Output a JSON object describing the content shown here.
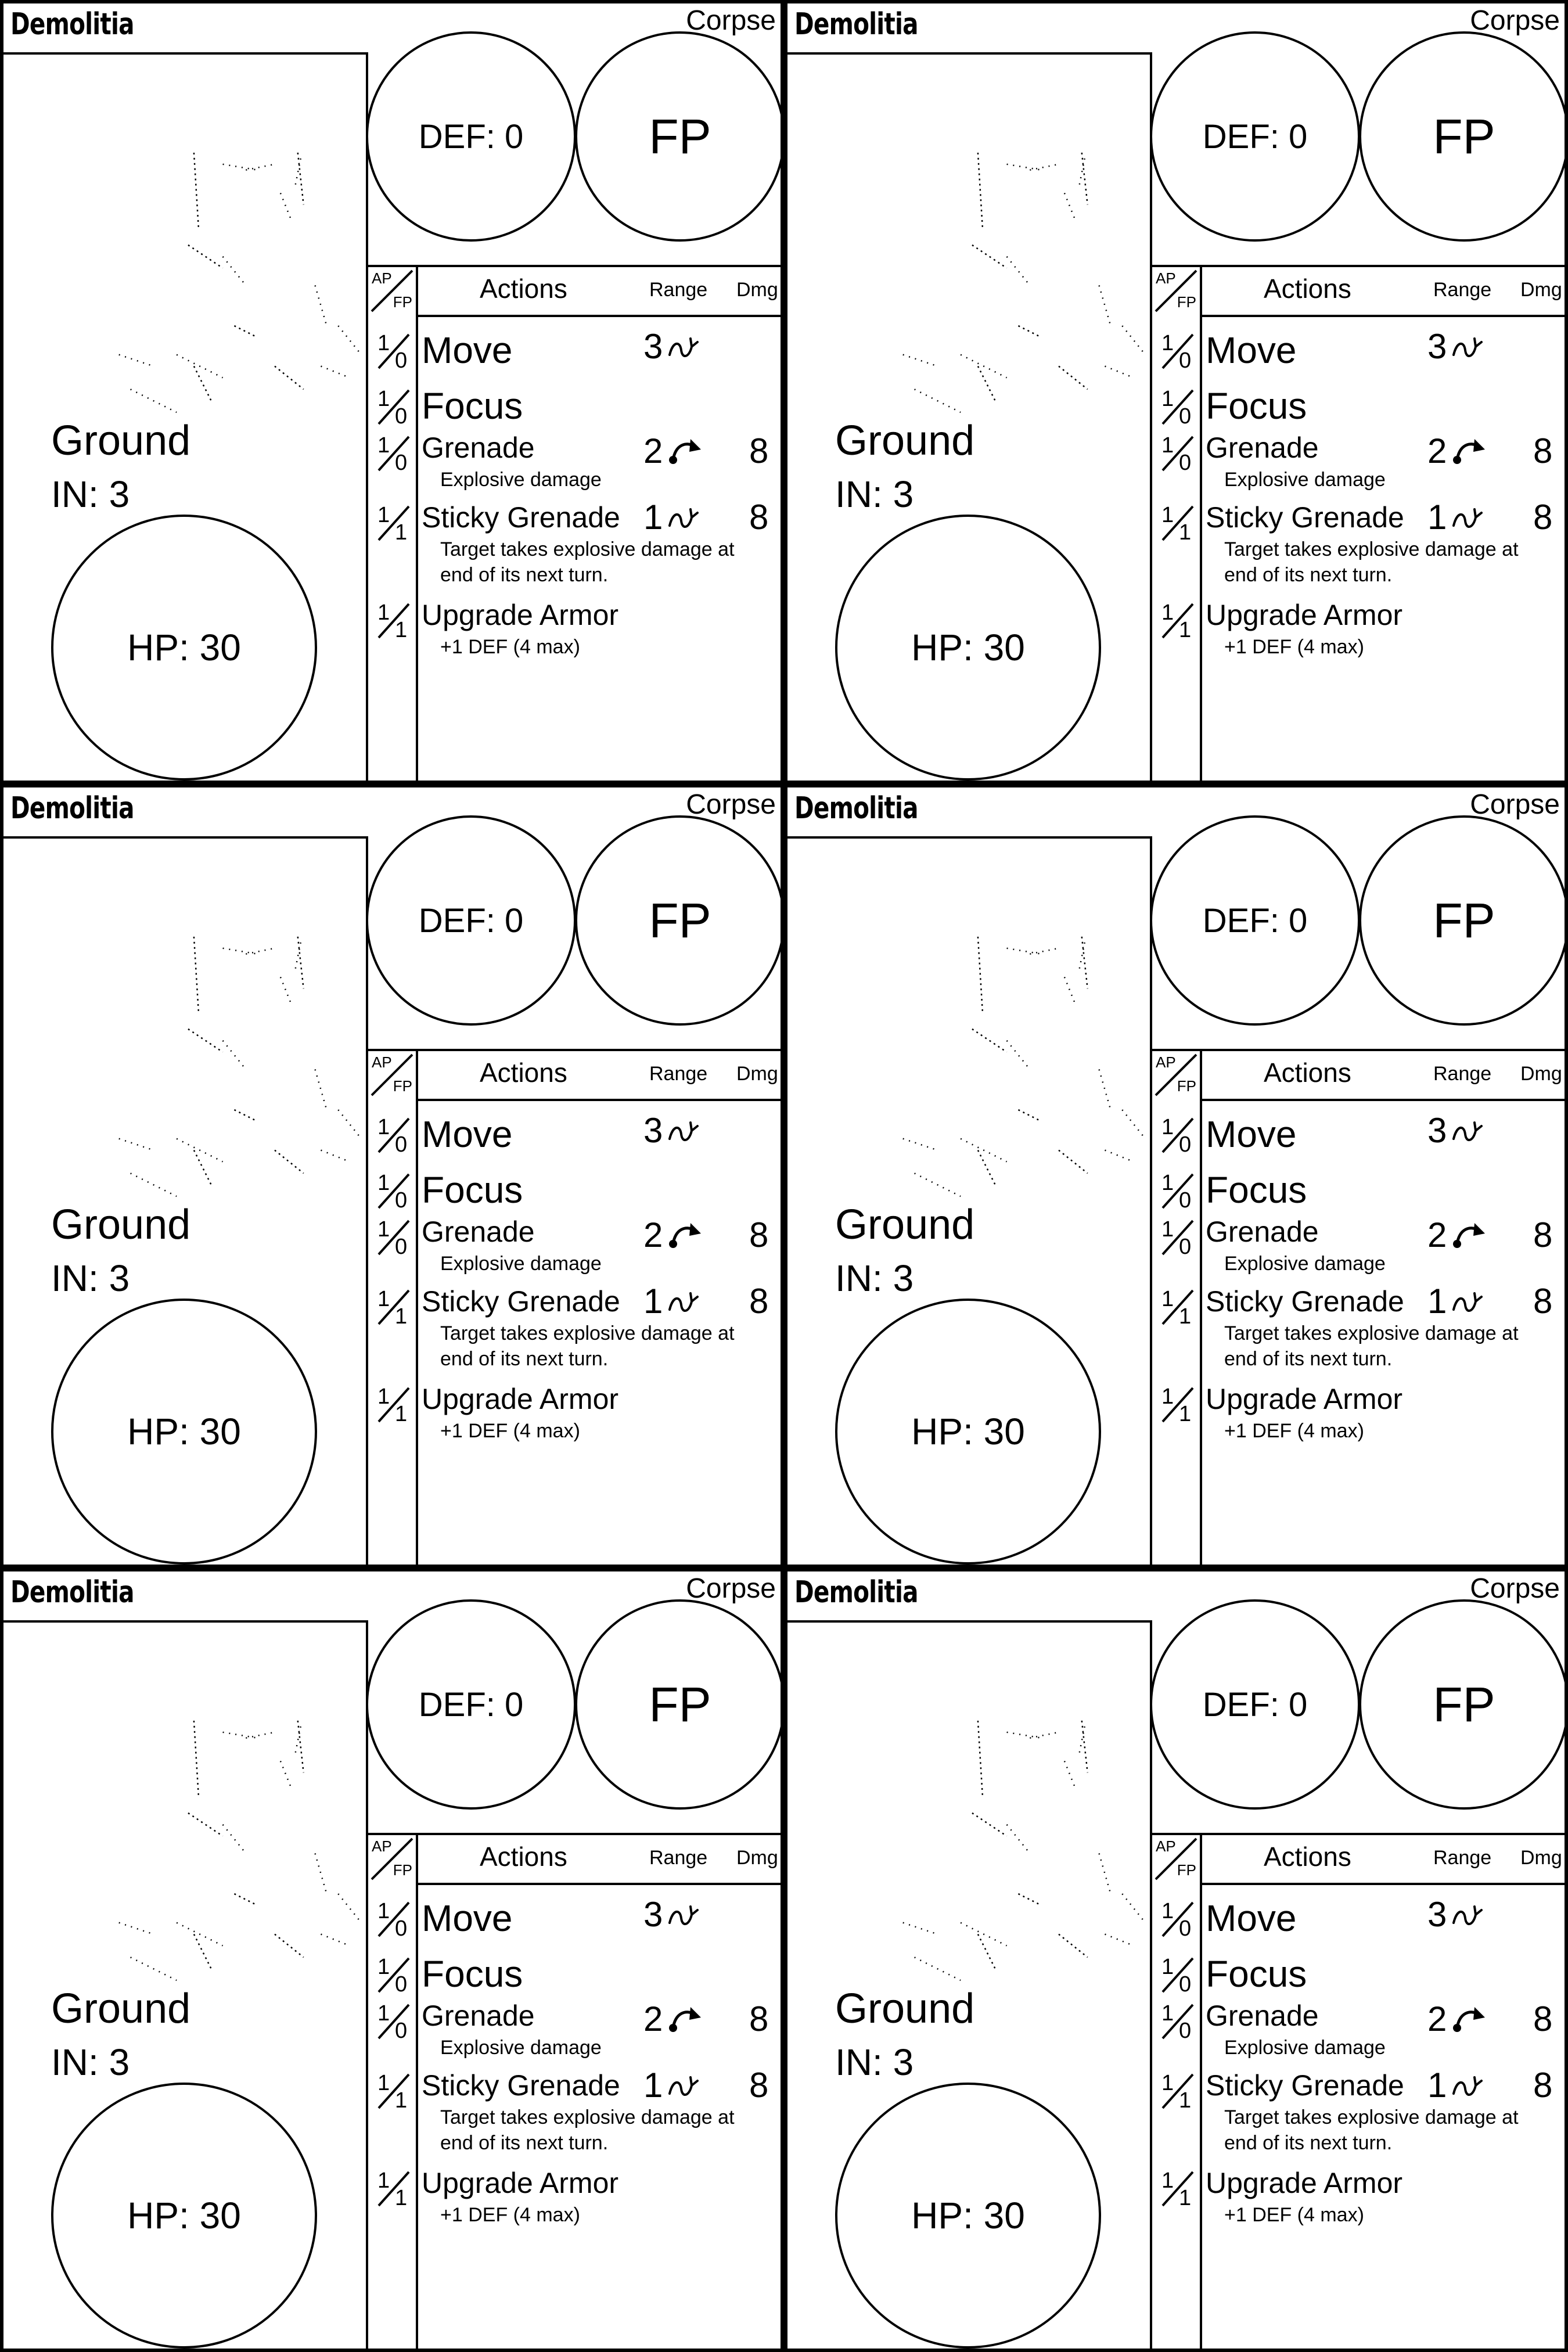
{
  "cards": [
    {
      "name": "Demolitia",
      "faction": "Corpse",
      "def_label": "DEF: 0",
      "fp_label": "FP",
      "terrain": "Ground",
      "initiative": "IN: 3",
      "hp_label": "HP: 30",
      "headers": {
        "ap": "AP",
        "fp": "FP",
        "actions": "Actions",
        "range": "Range",
        "dmg": "Dmg"
      },
      "actions": [
        {
          "ap": "1",
          "fp": "0",
          "name": "Move",
          "range": "3",
          "range_icon": "curved-path-icon",
          "dmg": "",
          "desc": []
        },
        {
          "ap": "1",
          "fp": "0",
          "name": "Focus",
          "range": "",
          "range_icon": "",
          "dmg": "",
          "desc": []
        },
        {
          "ap": "1",
          "fp": "0",
          "name": "Grenade",
          "range": "2",
          "range_icon": "lob-arc-icon",
          "dmg": "8",
          "desc": [
            "Explosive damage"
          ]
        },
        {
          "ap": "1",
          "fp": "1",
          "name": "Sticky Grenade",
          "range": "1",
          "range_icon": "curved-path-icon",
          "dmg": "8",
          "desc": [
            "Target takes explosive  damage at",
            "end of its next turn."
          ]
        },
        {
          "ap": "1",
          "fp": "1",
          "name": "Upgrade Armor",
          "range": "",
          "range_icon": "",
          "dmg": "",
          "desc": [
            "+1 DEF (4 max)"
          ]
        }
      ]
    },
    {
      "name": "Demolitia",
      "faction": "Corpse",
      "def_label": "DEF: 0",
      "fp_label": "FP",
      "terrain": "Ground",
      "initiative": "IN: 3",
      "hp_label": "HP: 30",
      "headers": {
        "ap": "AP",
        "fp": "FP",
        "actions": "Actions",
        "range": "Range",
        "dmg": "Dmg"
      },
      "actions": [
        {
          "ap": "1",
          "fp": "0",
          "name": "Move",
          "range": "3",
          "range_icon": "curved-path-icon",
          "dmg": "",
          "desc": []
        },
        {
          "ap": "1",
          "fp": "0",
          "name": "Focus",
          "range": "",
          "range_icon": "",
          "dmg": "",
          "desc": []
        },
        {
          "ap": "1",
          "fp": "0",
          "name": "Grenade",
          "range": "2",
          "range_icon": "lob-arc-icon",
          "dmg": "8",
          "desc": [
            "Explosive damage"
          ]
        },
        {
          "ap": "1",
          "fp": "1",
          "name": "Sticky Grenade",
          "range": "1",
          "range_icon": "curved-path-icon",
          "dmg": "8",
          "desc": [
            "Target takes explosive  damage at",
            "end of its next turn."
          ]
        },
        {
          "ap": "1",
          "fp": "1",
          "name": "Upgrade Armor",
          "range": "",
          "range_icon": "",
          "dmg": "",
          "desc": [
            "+1 DEF (4 max)"
          ]
        }
      ]
    },
    {
      "name": "Demolitia",
      "faction": "Corpse",
      "def_label": "DEF: 0",
      "fp_label": "FP",
      "terrain": "Ground",
      "initiative": "IN: 3",
      "hp_label": "HP: 30",
      "headers": {
        "ap": "AP",
        "fp": "FP",
        "actions": "Actions",
        "range": "Range",
        "dmg": "Dmg"
      },
      "actions": [
        {
          "ap": "1",
          "fp": "0",
          "name": "Move",
          "range": "3",
          "range_icon": "curved-path-icon",
          "dmg": "",
          "desc": []
        },
        {
          "ap": "1",
          "fp": "0",
          "name": "Focus",
          "range": "",
          "range_icon": "",
          "dmg": "",
          "desc": []
        },
        {
          "ap": "1",
          "fp": "0",
          "name": "Grenade",
          "range": "2",
          "range_icon": "lob-arc-icon",
          "dmg": "8",
          "desc": [
            "Explosive damage"
          ]
        },
        {
          "ap": "1",
          "fp": "1",
          "name": "Sticky Grenade",
          "range": "1",
          "range_icon": "curved-path-icon",
          "dmg": "8",
          "desc": [
            "Target takes explosive  damage at",
            "end of its next turn."
          ]
        },
        {
          "ap": "1",
          "fp": "1",
          "name": "Upgrade Armor",
          "range": "",
          "range_icon": "",
          "dmg": "",
          "desc": [
            "+1 DEF (4 max)"
          ]
        }
      ]
    },
    {
      "name": "Demolitia",
      "faction": "Corpse",
      "def_label": "DEF: 0",
      "fp_label": "FP",
      "terrain": "Ground",
      "initiative": "IN: 3",
      "hp_label": "HP: 30",
      "headers": {
        "ap": "AP",
        "fp": "FP",
        "actions": "Actions",
        "range": "Range",
        "dmg": "Dmg"
      },
      "actions": [
        {
          "ap": "1",
          "fp": "0",
          "name": "Move",
          "range": "3",
          "range_icon": "curved-path-icon",
          "dmg": "",
          "desc": []
        },
        {
          "ap": "1",
          "fp": "0",
          "name": "Focus",
          "range": "",
          "range_icon": "",
          "dmg": "",
          "desc": []
        },
        {
          "ap": "1",
          "fp": "0",
          "name": "Grenade",
          "range": "2",
          "range_icon": "lob-arc-icon",
          "dmg": "8",
          "desc": [
            "Explosive damage"
          ]
        },
        {
          "ap": "1",
          "fp": "1",
          "name": "Sticky Grenade",
          "range": "1",
          "range_icon": "curved-path-icon",
          "dmg": "8",
          "desc": [
            "Target takes explosive  damage at",
            "end of its next turn."
          ]
        },
        {
          "ap": "1",
          "fp": "1",
          "name": "Upgrade Armor",
          "range": "",
          "range_icon": "",
          "dmg": "",
          "desc": [
            "+1 DEF (4 max)"
          ]
        }
      ]
    },
    {
      "name": "Demolitia",
      "faction": "Corpse",
      "def_label": "DEF: 0",
      "fp_label": "FP",
      "terrain": "Ground",
      "initiative": "IN: 3",
      "hp_label": "HP: 30",
      "headers": {
        "ap": "AP",
        "fp": "FP",
        "actions": "Actions",
        "range": "Range",
        "dmg": "Dmg"
      },
      "actions": [
        {
          "ap": "1",
          "fp": "0",
          "name": "Move",
          "range": "3",
          "range_icon": "curved-path-icon",
          "dmg": "",
          "desc": []
        },
        {
          "ap": "1",
          "fp": "0",
          "name": "Focus",
          "range": "",
          "range_icon": "",
          "dmg": "",
          "desc": []
        },
        {
          "ap": "1",
          "fp": "0",
          "name": "Grenade",
          "range": "2",
          "range_icon": "lob-arc-icon",
          "dmg": "8",
          "desc": [
            "Explosive damage"
          ]
        },
        {
          "ap": "1",
          "fp": "1",
          "name": "Sticky Grenade",
          "range": "1",
          "range_icon": "curved-path-icon",
          "dmg": "8",
          "desc": [
            "Target takes explosive  damage at",
            "end of its next turn."
          ]
        },
        {
          "ap": "1",
          "fp": "1",
          "name": "Upgrade Armor",
          "range": "",
          "range_icon": "",
          "dmg": "",
          "desc": [
            "+1 DEF (4 max)"
          ]
        }
      ]
    },
    {
      "name": "Demolitia",
      "faction": "Corpse",
      "def_label": "DEF: 0",
      "fp_label": "FP",
      "terrain": "Ground",
      "initiative": "IN: 3",
      "hp_label": "HP: 30",
      "headers": {
        "ap": "AP",
        "fp": "FP",
        "actions": "Actions",
        "range": "Range",
        "dmg": "Dmg"
      },
      "actions": [
        {
          "ap": "1",
          "fp": "0",
          "name": "Move",
          "range": "3",
          "range_icon": "curved-path-icon",
          "dmg": "",
          "desc": []
        },
        {
          "ap": "1",
          "fp": "0",
          "name": "Focus",
          "range": "",
          "range_icon": "",
          "dmg": "",
          "desc": []
        },
        {
          "ap": "1",
          "fp": "0",
          "name": "Grenade",
          "range": "2",
          "range_icon": "lob-arc-icon",
          "dmg": "8",
          "desc": [
            "Explosive damage"
          ]
        },
        {
          "ap": "1",
          "fp": "1",
          "name": "Sticky Grenade",
          "range": "1",
          "range_icon": "curved-path-icon",
          "dmg": "8",
          "desc": [
            "Target takes explosive  damage at",
            "end of its next turn."
          ]
        },
        {
          "ap": "1",
          "fp": "1",
          "name": "Upgrade Armor",
          "range": "",
          "range_icon": "",
          "dmg": "",
          "desc": [
            "+1 DEF (4 max)"
          ]
        }
      ]
    }
  ]
}
